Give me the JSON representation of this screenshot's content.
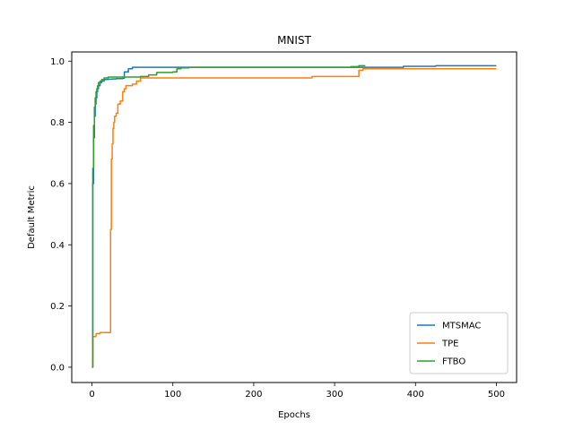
{
  "chart_data": {
    "type": "line",
    "title": "MNIST",
    "xlabel": "Epochs",
    "ylabel": "Default Metric",
    "xlim": [
      -25,
      525
    ],
    "ylim": [
      -0.05,
      1.03
    ],
    "xticks": [
      0,
      100,
      200,
      300,
      400,
      500
    ],
    "xtick_labels": [
      "0",
      "100",
      "200",
      "300",
      "400",
      "500"
    ],
    "yticks": [
      0.0,
      0.2,
      0.4,
      0.6,
      0.8,
      1.0
    ],
    "ytick_labels": [
      "0.0",
      "0.2",
      "0.4",
      "0.6",
      "0.8",
      "1.0"
    ],
    "grid": false,
    "legend_position": "lower-right",
    "step": true,
    "series": [
      {
        "name": "MTSMAC",
        "color": "#1f77b4",
        "x": [
          0,
          1,
          2,
          3,
          4,
          5,
          6,
          7,
          8,
          10,
          12,
          15,
          20,
          25,
          30,
          38,
          40,
          45,
          50,
          100,
          150,
          200,
          250,
          300,
          350,
          385,
          425,
          500
        ],
        "y": [
          0.0,
          0.6,
          0.75,
          0.82,
          0.86,
          0.88,
          0.9,
          0.91,
          0.92,
          0.93,
          0.935,
          0.94,
          0.941,
          0.942,
          0.943,
          0.944,
          0.965,
          0.975,
          0.98,
          0.98,
          0.98,
          0.98,
          0.98,
          0.98,
          0.98,
          0.983,
          0.985,
          0.985
        ]
      },
      {
        "name": "TPE",
        "color": "#ff7f0e",
        "x": [
          0,
          1,
          2,
          5,
          10,
          15,
          20,
          22,
          23,
          24,
          25,
          26,
          27,
          28,
          30,
          32,
          35,
          38,
          40,
          42,
          50,
          55,
          60,
          100,
          200,
          270,
          272,
          320,
          330,
          335,
          340,
          400,
          500
        ],
        "y": [
          0.0,
          0.1,
          0.1,
          0.11,
          0.113,
          0.113,
          0.113,
          0.113,
          0.45,
          0.68,
          0.73,
          0.78,
          0.8,
          0.82,
          0.83,
          0.86,
          0.87,
          0.9,
          0.91,
          0.92,
          0.925,
          0.935,
          0.945,
          0.945,
          0.945,
          0.945,
          0.95,
          0.95,
          0.97,
          0.975,
          0.975,
          0.975,
          0.975
        ]
      },
      {
        "name": "FTBO",
        "color": "#2ca02c",
        "x": [
          0,
          1,
          2,
          3,
          4,
          5,
          6,
          7,
          8,
          10,
          12,
          15,
          20,
          40,
          60,
          70,
          80,
          100,
          105,
          110,
          120,
          200,
          300,
          320,
          330,
          338
        ],
        "y": [
          0.0,
          0.65,
          0.79,
          0.85,
          0.88,
          0.9,
          0.91,
          0.92,
          0.93,
          0.935,
          0.94,
          0.945,
          0.948,
          0.948,
          0.95,
          0.955,
          0.963,
          0.965,
          0.975,
          0.978,
          0.98,
          0.98,
          0.98,
          0.982,
          0.985,
          0.985
        ]
      }
    ]
  }
}
